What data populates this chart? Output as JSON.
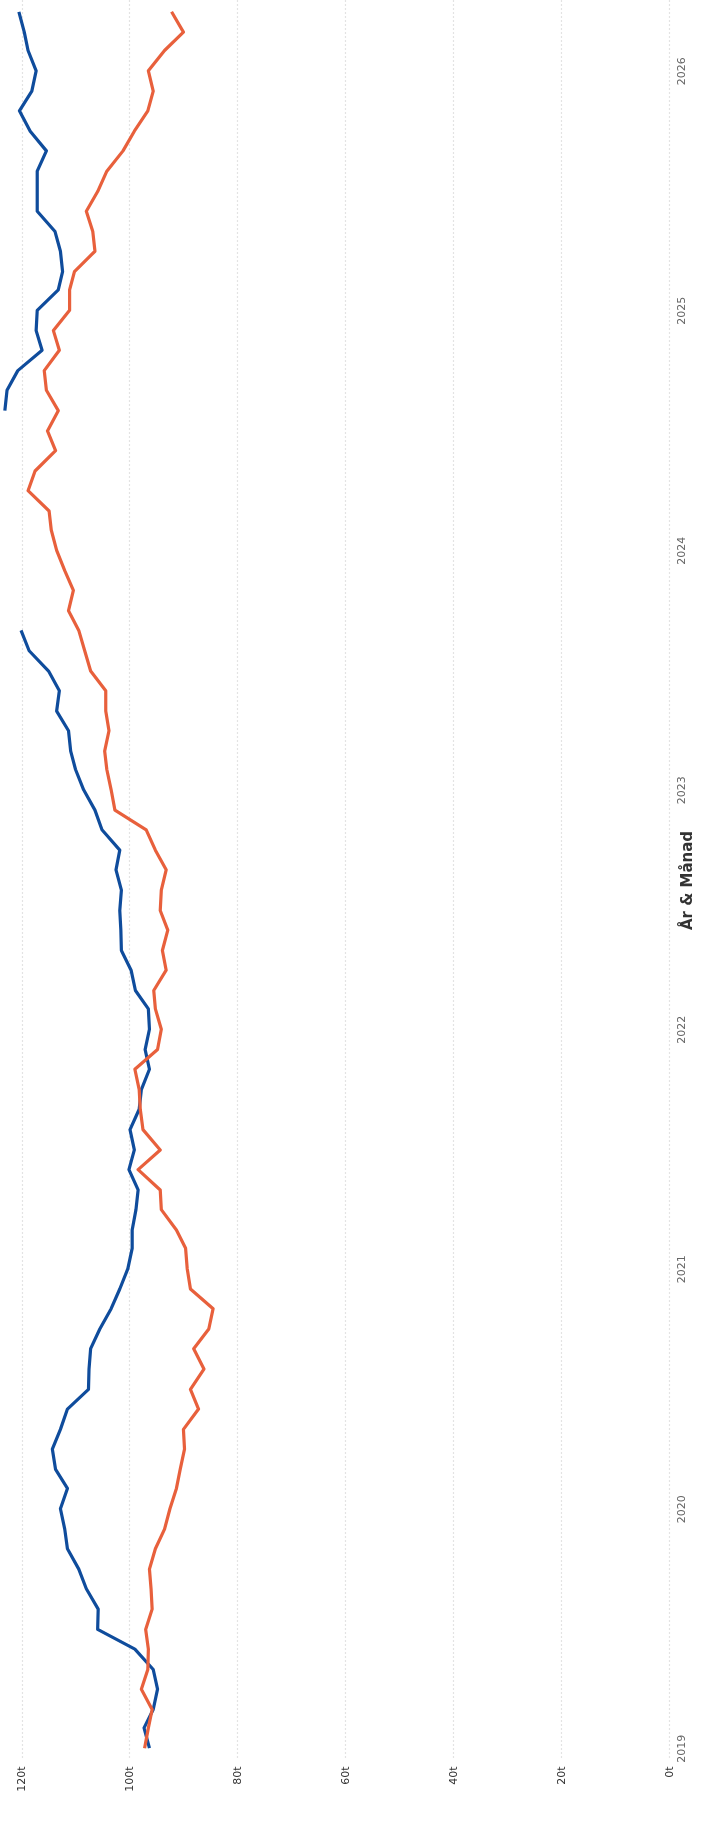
{
  "chart_data": {
    "type": "line",
    "ylabel": "År & Månad",
    "orientation": "horizontal",
    "x": [
      "2019-01",
      "2019-02",
      "2019-03",
      "2019-04",
      "2019-05",
      "2019-06",
      "2019-07",
      "2019-08",
      "2019-09",
      "2019-10",
      "2019-11",
      "2019-12",
      "2020-01",
      "2020-02",
      "2020-03",
      "2020-04",
      "2020-05",
      "2020-06",
      "2020-07",
      "2020-08",
      "2020-09",
      "2020-10",
      "2020-11",
      "2020-12",
      "2021-01",
      "2021-02",
      "2021-03",
      "2021-04",
      "2021-05",
      "2021-06",
      "2021-07",
      "2021-08",
      "2021-09",
      "2021-10",
      "2021-11",
      "2021-12",
      "2022-01",
      "2022-02",
      "2022-03",
      "2022-04",
      "2022-05",
      "2022-06",
      "2022-07",
      "2022-08",
      "2022-09",
      "2022-10",
      "2022-11",
      "2022-12",
      "2023-01",
      "2023-02",
      "2023-03",
      "2023-04",
      "2023-05",
      "2023-06",
      "2023-07",
      "2023-08",
      "2023-09",
      "2023-10",
      "2023-11",
      "2023-12",
      "2024-01",
      "2024-02",
      "2024-03",
      "2024-04",
      "2024-05",
      "2024-06",
      "2024-07",
      "2024-08",
      "2024-09",
      "2024-10",
      "2024-11",
      "2024-12",
      "2025-01",
      "2025-02",
      "2025-03",
      "2025-04",
      "2025-05",
      "2025-06",
      "2025-07",
      "2025-08",
      "2025-09",
      "2025-10",
      "2025-11",
      "2025-12",
      "2026-01",
      "2026-02",
      "2026-03",
      "2026-04"
    ],
    "series": [
      {
        "color": "#0f4c9c",
        "values": [
          96.3,
          97.3,
          95.6,
          94.8,
          95.6,
          99.0,
          105.9,
          105.8,
          108.0,
          109.4,
          111.5,
          112.0,
          112.8,
          111.5,
          113.7,
          114.3,
          112.8,
          111.5,
          107.6,
          107.5,
          107.2,
          105.5,
          103.4,
          101.8,
          100.3,
          99.5,
          99.5,
          98.8,
          98.4,
          100.1,
          99.1,
          99.9,
          98.2,
          97.8,
          96.3,
          97.1,
          96.3,
          96.5,
          98.9,
          99.7,
          101.5,
          101.6,
          101.8,
          101.5,
          102.5,
          101.8,
          105.1,
          106.4,
          108.5,
          110.0,
          110.9,
          111.3,
          113.5,
          113.0,
          115.0,
          118.6,
          120.1,
          null,
          null,
          null,
          null,
          null,
          null,
          null,
          null,
          null,
          null,
          123.1,
          122.7,
          120.7,
          116.2,
          117.3,
          117.1,
          113.2,
          112.4,
          112.8,
          113.8,
          117.1,
          117.1,
          117.1,
          115.4,
          118.4,
          120.4,
          118.1,
          117.3,
          118.8,
          119.5,
          120.5
        ]
      },
      {
        "color": "#e8603c",
        "values": [
          97.2,
          96.5,
          95.8,
          97.8,
          96.6,
          96.5,
          97.0,
          95.8,
          96.0,
          96.3,
          95.2,
          93.5,
          92.5,
          91.3,
          90.6,
          89.8,
          90.0,
          87.2,
          88.7,
          86.2,
          88.1,
          85.3,
          84.5,
          88.7,
          89.3,
          89.6,
          91.3,
          94.1,
          94.3,
          98.4,
          94.3,
          97.5,
          98.0,
          98.2,
          99.0,
          94.8,
          94.1,
          95.2,
          95.5,
          93.2,
          93.9,
          92.9,
          94.3,
          94.1,
          93.2,
          95.2,
          96.9,
          102.7,
          103.4,
          104.2,
          104.6,
          103.8,
          104.4,
          104.4,
          107.2,
          108.3,
          109.4,
          111.3,
          110.4,
          112.0,
          113.5,
          114.5,
          114.9,
          118.8,
          117.5,
          113.7,
          115.2,
          113.2,
          115.4,
          115.8,
          113.0,
          114.1,
          111.1,
          111.1,
          110.2,
          106.4,
          106.8,
          108.0,
          105.9,
          104.2,
          101.2,
          99.1,
          96.6,
          95.6,
          96.5,
          93.5,
          90.0,
          92.2
        ]
      }
    ],
    "ylim": [
      "2018-12-14",
      "2026-04-19"
    ],
    "yticks": [
      "2019",
      "2020",
      "2021",
      "2022",
      "2023",
      "2024",
      "2025",
      "2026"
    ],
    "xlim": [
      124,
      0
    ],
    "xticks": [
      {
        "value": 120,
        "label": "120t"
      },
      {
        "value": 100,
        "label": "100t"
      },
      {
        "value": 80,
        "label": "80t"
      },
      {
        "value": 60,
        "label": "60t"
      },
      {
        "value": 40,
        "label": "40t"
      },
      {
        "value": 20,
        "label": "20t"
      },
      {
        "value": 0,
        "label": "0t"
      }
    ],
    "grid": "x",
    "legend": false,
    "line_style": "solid"
  }
}
